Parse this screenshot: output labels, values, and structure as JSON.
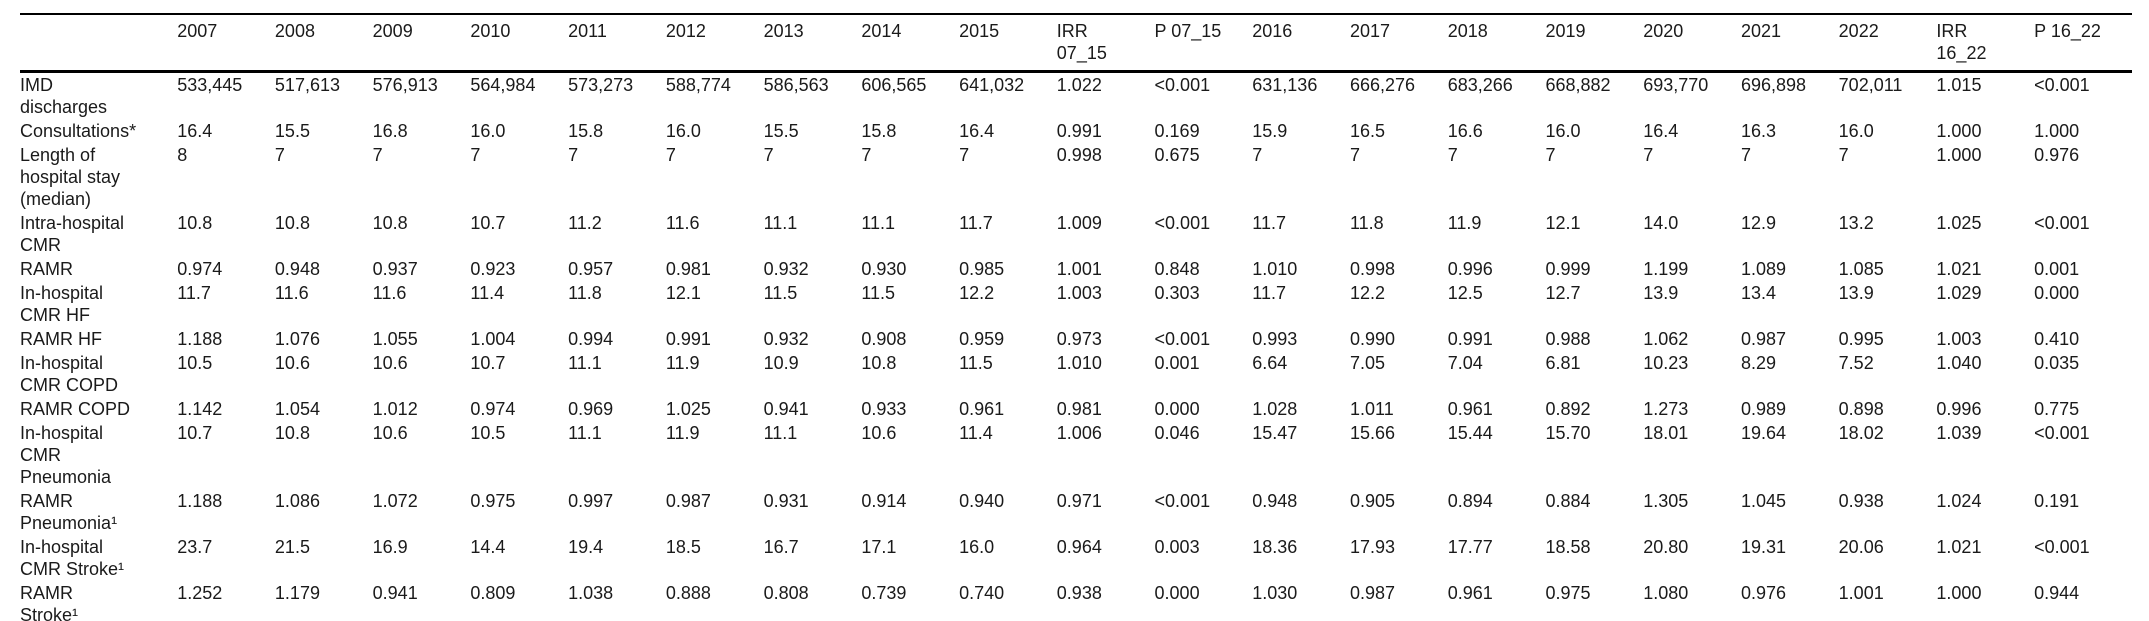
{
  "table": {
    "columns": [
      "",
      "2007",
      "2008",
      "2009",
      "2010",
      "2011",
      "2012",
      "2013",
      "2014",
      "2015",
      "IRR\n07_15",
      "P 07_15",
      "2016",
      "2017",
      "2018",
      "2019",
      "2020",
      "2021",
      "2022",
      "IRR\n16_22",
      "P 16_22"
    ],
    "rows": [
      {
        "label": "IMD\ndischarges",
        "values": [
          "533,445",
          "517,613",
          "576,913",
          "564,984",
          "573,273",
          "588,774",
          "586,563",
          "606,565",
          "641,032",
          "1.022",
          "<0.001",
          "631,136",
          "666,276",
          "683,266",
          "668,882",
          "693,770",
          "696,898",
          "702,011",
          "1.015",
          "<0.001"
        ]
      },
      {
        "label": "Consultations*",
        "values": [
          "16.4",
          "15.5",
          "16.8",
          "16.0",
          "15.8",
          "16.0",
          "15.5",
          "15.8",
          "16.4",
          "0.991",
          "0.169",
          "15.9",
          "16.5",
          "16.6",
          "16.0",
          "16.4",
          "16.3",
          "16.0",
          "1.000",
          "1.000"
        ]
      },
      {
        "label": "Length of\nhospital stay\n(median)",
        "values": [
          "8",
          "7",
          "7",
          "7",
          "7",
          "7",
          "7",
          "7",
          "7",
          "0.998",
          "0.675",
          "7",
          "7",
          "7",
          "7",
          "7",
          "7",
          "7",
          "1.000",
          "0.976"
        ]
      },
      {
        "label": "Intra-hospital\nCMR",
        "values": [
          "10.8",
          "10.8",
          "10.8",
          "10.7",
          "11.2",
          "11.6",
          "11.1",
          "11.1",
          "11.7",
          "1.009",
          "<0.001",
          "11.7",
          "11.8",
          "11.9",
          "12.1",
          "14.0",
          "12.9",
          "13.2",
          "1.025",
          "<0.001"
        ]
      },
      {
        "label": "RAMR",
        "values": [
          "0.974",
          "0.948",
          "0.937",
          "0.923",
          "0.957",
          "0.981",
          "0.932",
          "0.930",
          "0.985",
          "1.001",
          "0.848",
          "1.010",
          "0.998",
          "0.996",
          "0.999",
          "1.199",
          "1.089",
          "1.085",
          "1.021",
          "0.001"
        ]
      },
      {
        "label": "In-hospital\nCMR HF",
        "values": [
          "11.7",
          "11.6",
          "11.6",
          "11.4",
          "11.8",
          "12.1",
          "11.5",
          "11.5",
          "12.2",
          "1.003",
          "0.303",
          "11.7",
          "12.2",
          "12.5",
          "12.7",
          "13.9",
          "13.4",
          "13.9",
          "1.029",
          "0.000"
        ]
      },
      {
        "label": "RAMR HF",
        "values": [
          "1.188",
          "1.076",
          "1.055",
          "1.004",
          "0.994",
          "0.991",
          "0.932",
          "0.908",
          "0.959",
          "0.973",
          "<0.001",
          "0.993",
          "0.990",
          "0.991",
          "0.988",
          "1.062",
          "0.987",
          "0.995",
          "1.003",
          "0.410"
        ]
      },
      {
        "label": "In-hospital\nCMR COPD",
        "values": [
          "10.5",
          "10.6",
          "10.6",
          "10.7",
          "11.1",
          "11.9",
          "10.9",
          "10.8",
          "11.5",
          "1.010",
          "0.001",
          "6.64",
          "7.05",
          "7.04",
          "6.81",
          "10.23",
          "8.29",
          "7.52",
          "1.040",
          "0.035"
        ]
      },
      {
        "label": "RAMR COPD",
        "values": [
          "1.142",
          "1.054",
          "1.012",
          "0.974",
          "0.969",
          "1.025",
          "0.941",
          "0.933",
          "0.961",
          "0.981",
          "0.000",
          "1.028",
          "1.011",
          "0.961",
          "0.892",
          "1.273",
          "0.989",
          "0.898",
          "0.996",
          "0.775"
        ]
      },
      {
        "label": "In-hospital\nCMR\nPneumonia",
        "values": [
          "10.7",
          "10.8",
          "10.6",
          "10.5",
          "11.1",
          "11.9",
          "11.1",
          "10.6",
          "11.4",
          "1.006",
          "0.046",
          "15.47",
          "15.66",
          "15.44",
          "15.70",
          "18.01",
          "19.64",
          "18.02",
          "1.039",
          "<0.001"
        ]
      },
      {
        "label": "RAMR\nPneumonia¹",
        "values": [
          "1.188",
          "1.086",
          "1.072",
          "0.975",
          "0.997",
          "0.987",
          "0.931",
          "0.914",
          "0.940",
          "0.971",
          "<0.001",
          "0.948",
          "0.905",
          "0.894",
          "0.884",
          "1.305",
          "1.045",
          "0.938",
          "1.024",
          "0.191"
        ]
      },
      {
        "label": "In-hospital\nCMR Stroke¹",
        "values": [
          "23.7",
          "21.5",
          "16.9",
          "14.4",
          "19.4",
          "18.5",
          "16.7",
          "17.1",
          "16.0",
          "0.964",
          "0.003",
          "18.36",
          "17.93",
          "17.77",
          "18.58",
          "20.80",
          "19.31",
          "20.06",
          "1.021",
          "<0.001"
        ]
      },
      {
        "label": "RAMR\nStroke¹",
        "values": [
          "1.252",
          "1.179",
          "0.941",
          "0.809",
          "1.038",
          "0.888",
          "0.808",
          "0.739",
          "0.740",
          "0.938",
          "0.000",
          "1.030",
          "0.987",
          "0.961",
          "0.975",
          "1.080",
          "0.976",
          "1.001",
          "1.000",
          "0.944"
        ]
      }
    ]
  }
}
